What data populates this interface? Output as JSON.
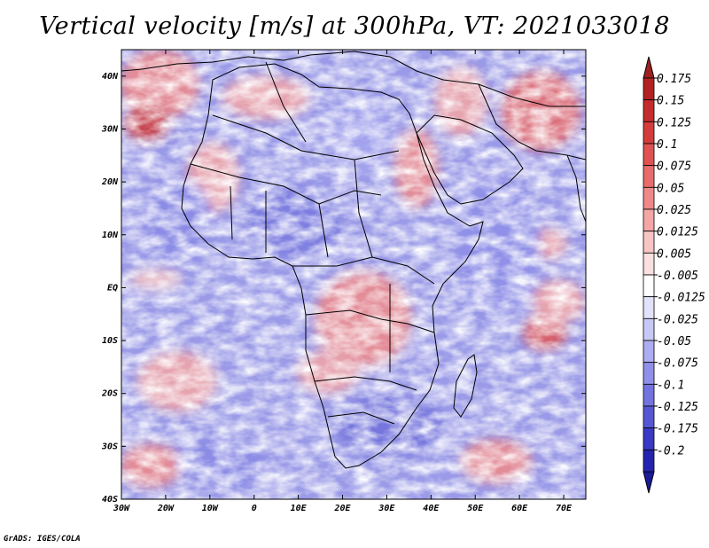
{
  "title": "Vertical velocity [m/s] at 300hPa, VT: 2021033018",
  "credit": "GrADS: IGES/COLA",
  "map": {
    "projection": "lat-lon",
    "lon_range": [
      -30,
      75
    ],
    "lat_range": [
      -40,
      45
    ],
    "lat_ticks": [
      {
        "value": 40,
        "label": "40N"
      },
      {
        "value": 30,
        "label": "30N"
      },
      {
        "value": 20,
        "label": "20N"
      },
      {
        "value": 10,
        "label": "10N"
      },
      {
        "value": 0,
        "label": "EQ"
      },
      {
        "value": -10,
        "label": "10S"
      },
      {
        "value": -20,
        "label": "20S"
      },
      {
        "value": -30,
        "label": "30S"
      },
      {
        "value": -40,
        "label": "40S"
      }
    ],
    "lon_ticks": [
      {
        "value": -30,
        "label": "30W"
      },
      {
        "value": -20,
        "label": "20W"
      },
      {
        "value": -10,
        "label": "10W"
      },
      {
        "value": 0,
        "label": "0"
      },
      {
        "value": 10,
        "label": "10E"
      },
      {
        "value": 20,
        "label": "20E"
      },
      {
        "value": 30,
        "label": "30E"
      },
      {
        "value": 40,
        "label": "40E"
      },
      {
        "value": 50,
        "label": "50E"
      },
      {
        "value": 60,
        "label": "60E"
      },
      {
        "value": 70,
        "label": "70E"
      }
    ]
  },
  "colorbar": {
    "units": "m/s",
    "levels": [
      {
        "label": "0.175",
        "color": "#b32222"
      },
      {
        "label": "0.15",
        "color": "#c42c2c"
      },
      {
        "label": "0.125",
        "color": "#d43c3c"
      },
      {
        "label": "0.1",
        "color": "#e05252"
      },
      {
        "label": "0.075",
        "color": "#e86c6c"
      },
      {
        "label": "0.05",
        "color": "#ef8888"
      },
      {
        "label": "0.025",
        "color": "#f4a6a6"
      },
      {
        "label": "0.0125",
        "color": "#f8c4c4"
      },
      {
        "label": "0.005",
        "color": "#fbe0e0"
      },
      {
        "label": "-0.005",
        "color": "#ffffff"
      },
      {
        "label": "-0.0125",
        "color": "#e2e2fb"
      },
      {
        "label": "-0.025",
        "color": "#c8c8f6"
      },
      {
        "label": "-0.05",
        "color": "#adadf1"
      },
      {
        "label": "-0.075",
        "color": "#9090ea"
      },
      {
        "label": "-0.1",
        "color": "#7373e0"
      },
      {
        "label": "-0.125",
        "color": "#5656d4"
      },
      {
        "label": "-0.175",
        "color": "#3a3ac6"
      },
      {
        "label": "-0.2",
        "color": "#2424b0"
      }
    ],
    "top_color": "#a02020",
    "bottom_color": "#1a1a9a"
  }
}
